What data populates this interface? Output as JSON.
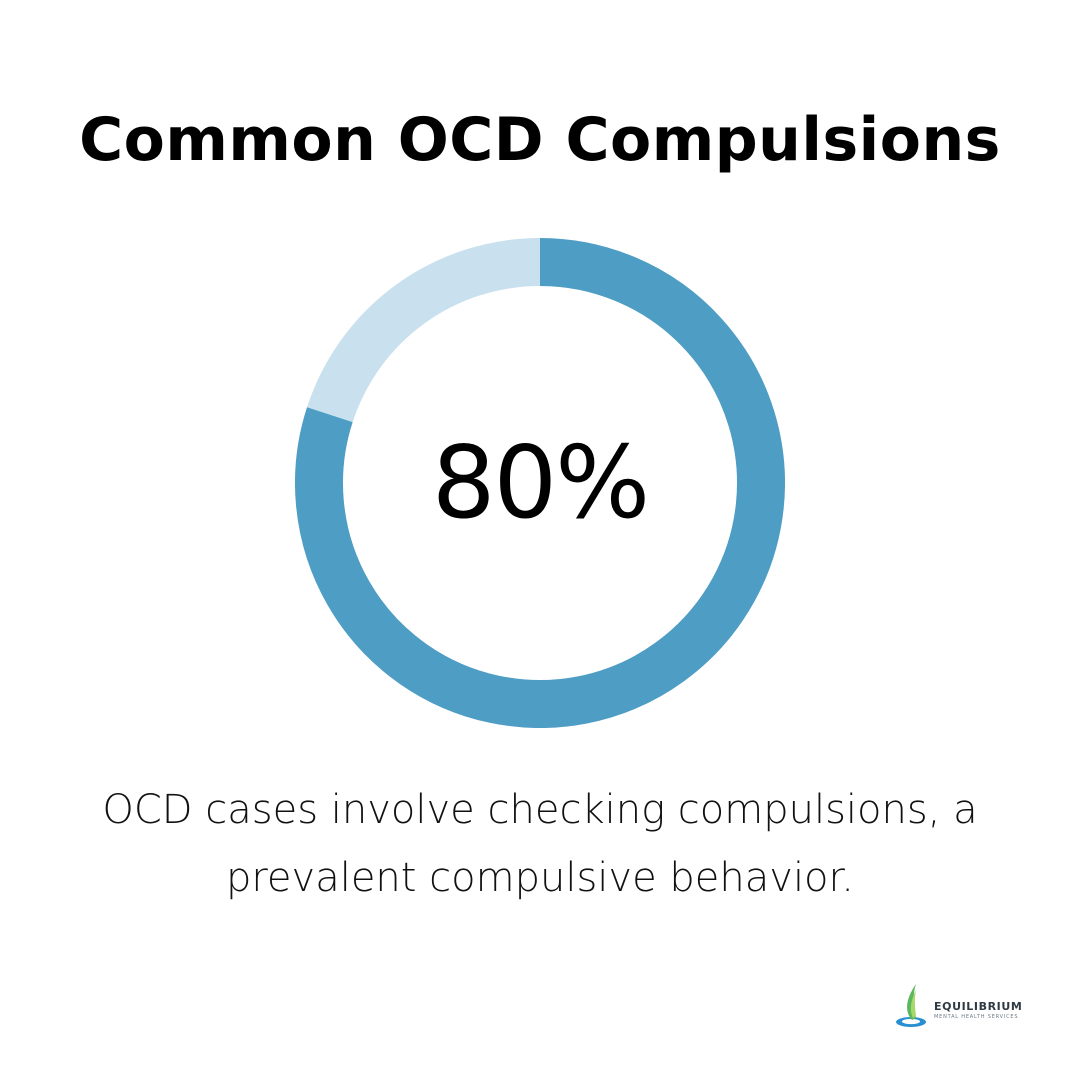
{
  "title": "Common OCD Compulsions",
  "chart_data": {
    "type": "pie",
    "value": 80,
    "display_value": "80%",
    "max": 100,
    "colors": {
      "filled": "#4e9dc4",
      "remaining": "#c9e0ee"
    }
  },
  "description": "OCD cases involve checking compulsions, a prevalent compulsive behavior.",
  "logo": {
    "name": "EQUILIBRIUM",
    "tagline": "MENTAL HEALTH SERVICES",
    "icon": "leaf-droplet-icon"
  }
}
